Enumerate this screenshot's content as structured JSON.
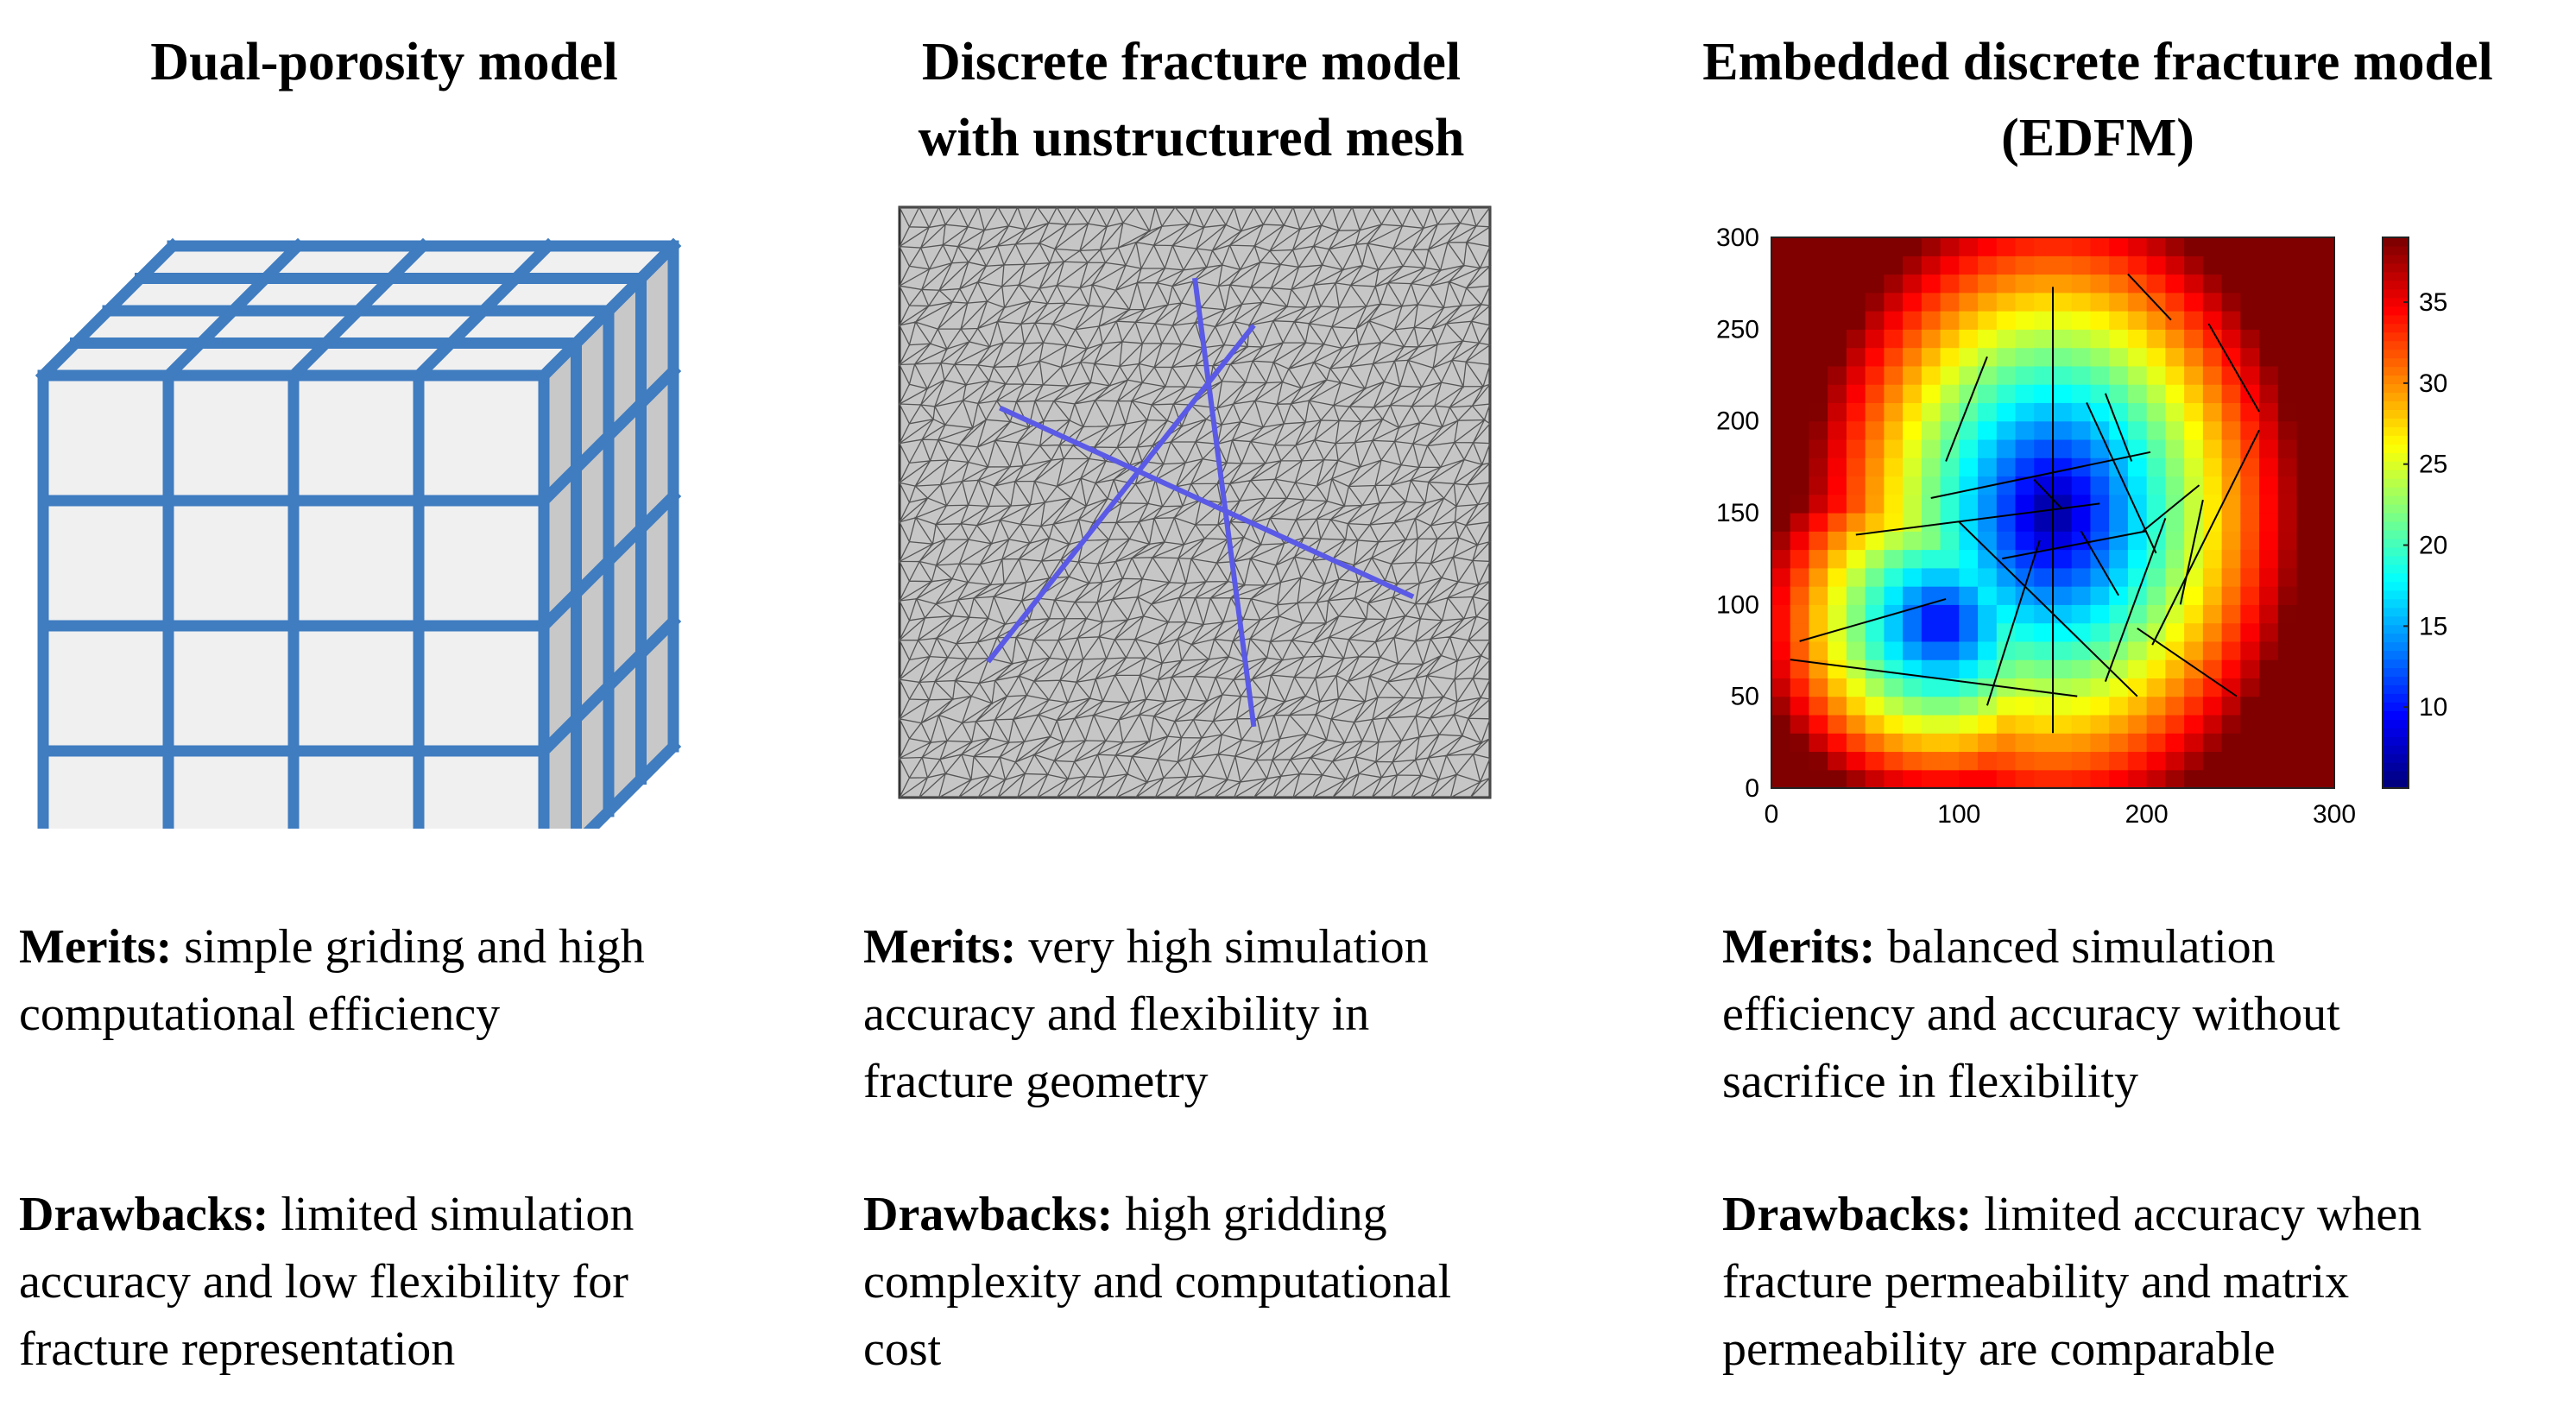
{
  "columns": [
    {
      "title_lines": [
        "Dual-porosity model"
      ],
      "merits_label": "Merits:",
      "merits_lines": [
        "simple  griding  and high",
        "computational  efficiency"
      ],
      "drawbacks_label": "Drawbacks:",
      "drawbacks_lines": [
        "limited simulation",
        "accuracy and low flexibility  for",
        "fracture representation"
      ]
    },
    {
      "title_lines": [
        "Discrete fracture model",
        "with unstructured mesh"
      ],
      "merits_label": "Merits:",
      "merits_lines": [
        "very high simulation",
        "accuracy and flexibility  in",
        "fracture  geometry"
      ],
      "drawbacks_label": "Drawbacks:",
      "drawbacks_lines": [
        "high gridding",
        "complexity  and computational",
        "cost"
      ]
    },
    {
      "title_lines": [
        "Embedded discrete fracture model",
        "(EDFM)"
      ],
      "merits_label": "Merits:",
      "merits_lines": [
        "balanced simulation",
        "efficiency  and accuracy without",
        "sacrifice  in flexibility"
      ],
      "drawbacks_label": "Drawbacks:",
      "drawbacks_lines": [
        "limited accuracy when",
        "fracture permeability  and matrix",
        "permeability  are comparable"
      ]
    }
  ],
  "colors": {
    "grid_blue": "#3f7cc0",
    "cell_fill": "#f0f0f0",
    "side_fill": "#c8c8c8",
    "mesh_fill": "#c6c6c6",
    "mesh_line": "#555555",
    "fracture_blue": "#5a5ae6"
  },
  "chart_data": {
    "type": "heatmap",
    "xlim": [
      0,
      300
    ],
    "ylim": [
      0,
      300
    ],
    "x_ticks": [
      "0",
      "100",
      "200",
      "300"
    ],
    "y_ticks": [
      "0",
      "50",
      "100",
      "150",
      "200",
      "250",
      "300"
    ],
    "colorbar_ticks": [
      "10",
      "15",
      "20",
      "25",
      "30",
      "35"
    ],
    "colorbar_range": [
      5,
      39
    ],
    "colormap": "jet",
    "low_center": [
      150,
      150
    ],
    "fractures": [
      [
        15,
        80,
        93,
        103
      ],
      [
        10,
        70,
        163,
        50
      ],
      [
        45,
        138,
        175,
        155
      ],
      [
        85,
        158,
        202,
        183
      ],
      [
        100,
        145,
        195,
        50
      ],
      [
        123,
        125,
        200,
        140
      ],
      [
        150,
        273,
        150,
        30
      ],
      [
        165,
        140,
        185,
        105
      ],
      [
        168,
        210,
        205,
        128
      ],
      [
        210,
        147,
        178,
        58
      ],
      [
        178,
        215,
        192,
        178
      ],
      [
        230,
        157,
        218,
        100
      ],
      [
        195,
        87,
        248,
        50
      ],
      [
        203,
        78,
        260,
        195
      ],
      [
        93,
        178,
        115,
        235
      ],
      [
        143,
        135,
        115,
        45
      ],
      [
        140,
        168,
        155,
        152
      ],
      [
        198,
        140,
        228,
        165
      ],
      [
        190,
        280,
        213,
        255
      ],
      [
        233,
        253,
        260,
        205
      ]
    ]
  },
  "mesh_fractures": [
    [
      0.17,
      0.34,
      0.87,
      0.66
    ],
    [
      0.5,
      0.12,
      0.6,
      0.88
    ],
    [
      0.15,
      0.77,
      0.6,
      0.2
    ]
  ]
}
